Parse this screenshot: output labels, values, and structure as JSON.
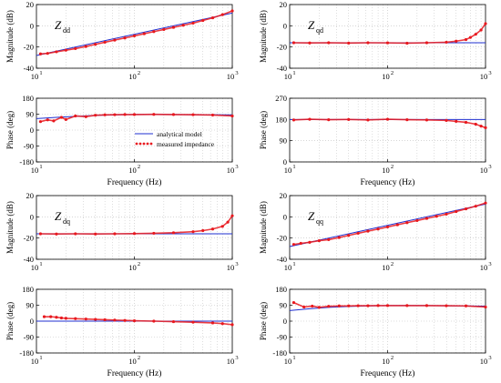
{
  "figure": {
    "legend": {
      "analytical": "analytical model",
      "measured": "measured impedance"
    }
  },
  "colors": {
    "analytical": "#1f2fd0",
    "measured": "#e8191f",
    "grid": "#bdbdbd"
  },
  "chart_data": [
    {
      "id": "Zdd_mag",
      "type": "line",
      "name_main": "Z",
      "name_sub": "dd",
      "xlabel": "",
      "ylabel": "Magnitude (dB)",
      "xscale": "log",
      "xlim": [
        10,
        1000
      ],
      "ylim": [
        -40,
        20
      ],
      "yticks": [
        "20",
        "0",
        "-20",
        "-40"
      ],
      "xticks": [
        "10^1",
        "10^2",
        "10^3"
      ],
      "analytical": {
        "x": [
          10,
          1000
        ],
        "y": [
          -28,
          12
        ]
      },
      "measured": {
        "x": [
          11,
          13,
          16,
          20,
          25,
          32,
          40,
          50,
          63,
          80,
          100,
          126,
          158,
          200,
          251,
          316,
          398,
          501,
          631,
          794,
          1000
        ],
        "y": [
          -26.5,
          -26,
          -24.5,
          -23,
          -21.5,
          -19.5,
          -17.5,
          -15.5,
          -13.5,
          -11.5,
          -9.5,
          -7.5,
          -5.5,
          -3.5,
          -1.5,
          0.5,
          2.5,
          5,
          7.5,
          10.5,
          14
        ]
      }
    },
    {
      "id": "Zqd_mag",
      "type": "line",
      "name_main": "Z",
      "name_sub": "qd",
      "xlabel": "",
      "ylabel": "Magnitude (dB)",
      "xscale": "log",
      "xlim": [
        10,
        1000
      ],
      "ylim": [
        -40,
        20
      ],
      "yticks": [
        "20",
        "0",
        "-20",
        "-40"
      ],
      "xticks": [
        "10^1",
        "10^2",
        "10^3"
      ],
      "analytical": {
        "x": [
          10,
          1000
        ],
        "y": [
          -16,
          -16
        ]
      },
      "measured": {
        "x": [
          11,
          16,
          25,
          40,
          63,
          100,
          158,
          251,
          398,
          501,
          631,
          700,
          794,
          900,
          1000
        ],
        "y": [
          -16,
          -16.2,
          -16,
          -16.3,
          -16,
          -16.1,
          -16.4,
          -16,
          -15.5,
          -14.5,
          -13,
          -11,
          -8,
          -4,
          2
        ]
      }
    },
    {
      "id": "Zdd_phase",
      "type": "line",
      "xlabel": "Frequency (Hz)",
      "ylabel": "Phase (deg)",
      "xscale": "log",
      "xlim": [
        10,
        1000
      ],
      "ylim": [
        -180,
        180
      ],
      "yticks": [
        "180",
        "90",
        "0",
        "-90",
        "-180"
      ],
      "xticks": [
        "10^1",
        "10^2",
        "10^3"
      ],
      "analytical": {
        "x": [
          10,
          16,
          25,
          40,
          63,
          100,
          158,
          251,
          398,
          631,
          1000
        ],
        "y": [
          65,
          72,
          78,
          83,
          86,
          88,
          88,
          88,
          87,
          87,
          86
        ]
      },
      "measured": {
        "x": [
          11,
          13,
          15,
          18,
          20,
          25,
          32,
          40,
          50,
          63,
          80,
          100,
          158,
          251,
          398,
          631,
          1000
        ],
        "y": [
          48,
          58,
          52,
          72,
          60,
          80,
          76,
          84,
          86,
          87,
          88,
          88,
          89,
          88,
          87,
          85,
          80
        ]
      }
    },
    {
      "id": "Zqd_phase",
      "type": "line",
      "xlabel": "Frequency (Hz)",
      "ylabel": "Phase (deg)",
      "xscale": "log",
      "xlim": [
        10,
        1000
      ],
      "ylim": [
        0,
        270
      ],
      "yticks": [
        "270",
        "180",
        "90",
        "0"
      ],
      "xticks": [
        "10^1",
        "10^2",
        "10^3"
      ],
      "analytical": {
        "x": [
          10,
          1000
        ],
        "y": [
          180,
          180
        ]
      },
      "measured": {
        "x": [
          11,
          16,
          25,
          40,
          63,
          100,
          158,
          251,
          398,
          501,
          631,
          794,
          900,
          1000
        ],
        "y": [
          178,
          181,
          179,
          180,
          178,
          181,
          179,
          178,
          176,
          172,
          168,
          160,
          152,
          145
        ]
      }
    },
    {
      "id": "Zdq_mag",
      "type": "line",
      "name_main": "Z",
      "name_sub": "dq",
      "xlabel": "",
      "ylabel": "Magnitude (dB)",
      "xscale": "log",
      "xlim": [
        10,
        1000
      ],
      "ylim": [
        -40,
        20
      ],
      "yticks": [
        "20",
        "0",
        "-20",
        "-40"
      ],
      "xticks": [
        "10^1",
        "10^2",
        "10^3"
      ],
      "analytical": {
        "x": [
          10,
          1000
        ],
        "y": [
          -16,
          -16
        ]
      },
      "measured": {
        "x": [
          11,
          16,
          25,
          40,
          63,
          100,
          158,
          251,
          398,
          501,
          631,
          794,
          900,
          1000
        ],
        "y": [
          -16,
          -16.2,
          -16,
          -16.2,
          -16,
          -15.8,
          -15.5,
          -15,
          -14,
          -13,
          -11.5,
          -9,
          -5,
          1
        ]
      }
    },
    {
      "id": "Zqq_mag",
      "type": "line",
      "name_main": "Z",
      "name_sub": "qq",
      "xlabel": "",
      "ylabel": "Magnitude (dB)",
      "xscale": "log",
      "xlim": [
        10,
        1000
      ],
      "ylim": [
        -40,
        20
      ],
      "yticks": [
        "20",
        "0",
        "-20",
        "-40"
      ],
      "xticks": [
        "10^1",
        "10^2",
        "10^3"
      ],
      "analytical": {
        "x": [
          10,
          1000
        ],
        "y": [
          -28,
          12
        ]
      },
      "measured": {
        "x": [
          11,
          13,
          16,
          20,
          25,
          32,
          40,
          50,
          63,
          80,
          100,
          126,
          158,
          200,
          251,
          316,
          398,
          501,
          631,
          794,
          1000
        ],
        "y": [
          -26,
          -25,
          -24,
          -22.5,
          -21.5,
          -19.5,
          -17.5,
          -15.5,
          -13.5,
          -11.5,
          -9.5,
          -7.5,
          -5.5,
          -3.5,
          -1.5,
          0.5,
          2.5,
          5,
          7.5,
          10,
          13
        ]
      }
    },
    {
      "id": "Zdq_phase",
      "type": "line",
      "xlabel": "Frequency (Hz)",
      "ylabel": "Phase (deg)",
      "xscale": "log",
      "xlim": [
        10,
        1000
      ],
      "ylim": [
        -180,
        180
      ],
      "yticks": [
        "180",
        "90",
        "0",
        "-90",
        "-180"
      ],
      "xticks": [
        "10^1",
        "10^2",
        "10^3"
      ],
      "analytical": {
        "x": [
          10,
          1000
        ],
        "y": [
          0,
          0
        ]
      },
      "measured": {
        "x": [
          12,
          14,
          16,
          18,
          20,
          25,
          32,
          40,
          50,
          63,
          80,
          100,
          158,
          251,
          398,
          631,
          794,
          1000
        ],
        "y": [
          25,
          25,
          22,
          18,
          16,
          14,
          12,
          10,
          8,
          6,
          4,
          2,
          0,
          -3,
          -6,
          -10,
          -14,
          -20
        ]
      }
    },
    {
      "id": "Zqq_phase",
      "type": "line",
      "xlabel": "Frequency (Hz)",
      "ylabel": "Phase (deg)",
      "xscale": "log",
      "xlim": [
        10,
        1000
      ],
      "ylim": [
        -180,
        180
      ],
      "yticks": [
        "180",
        "90",
        "0",
        "-90",
        "-180"
      ],
      "xticks": [
        "10^1",
        "10^2",
        "10^3"
      ],
      "analytical": {
        "x": [
          10,
          16,
          25,
          40,
          63,
          100,
          158,
          251,
          398,
          631,
          1000
        ],
        "y": [
          60,
          70,
          78,
          83,
          86,
          88,
          88,
          88,
          87,
          86,
          85
        ]
      },
      "measured": {
        "x": [
          11,
          14,
          17,
          20,
          25,
          32,
          40,
          50,
          63,
          80,
          100,
          158,
          251,
          398,
          631,
          1000
        ],
        "y": [
          105,
          80,
          85,
          78,
          84,
          86,
          86,
          87,
          87,
          88,
          88,
          88,
          88,
          87,
          86,
          80
        ]
      }
    }
  ]
}
